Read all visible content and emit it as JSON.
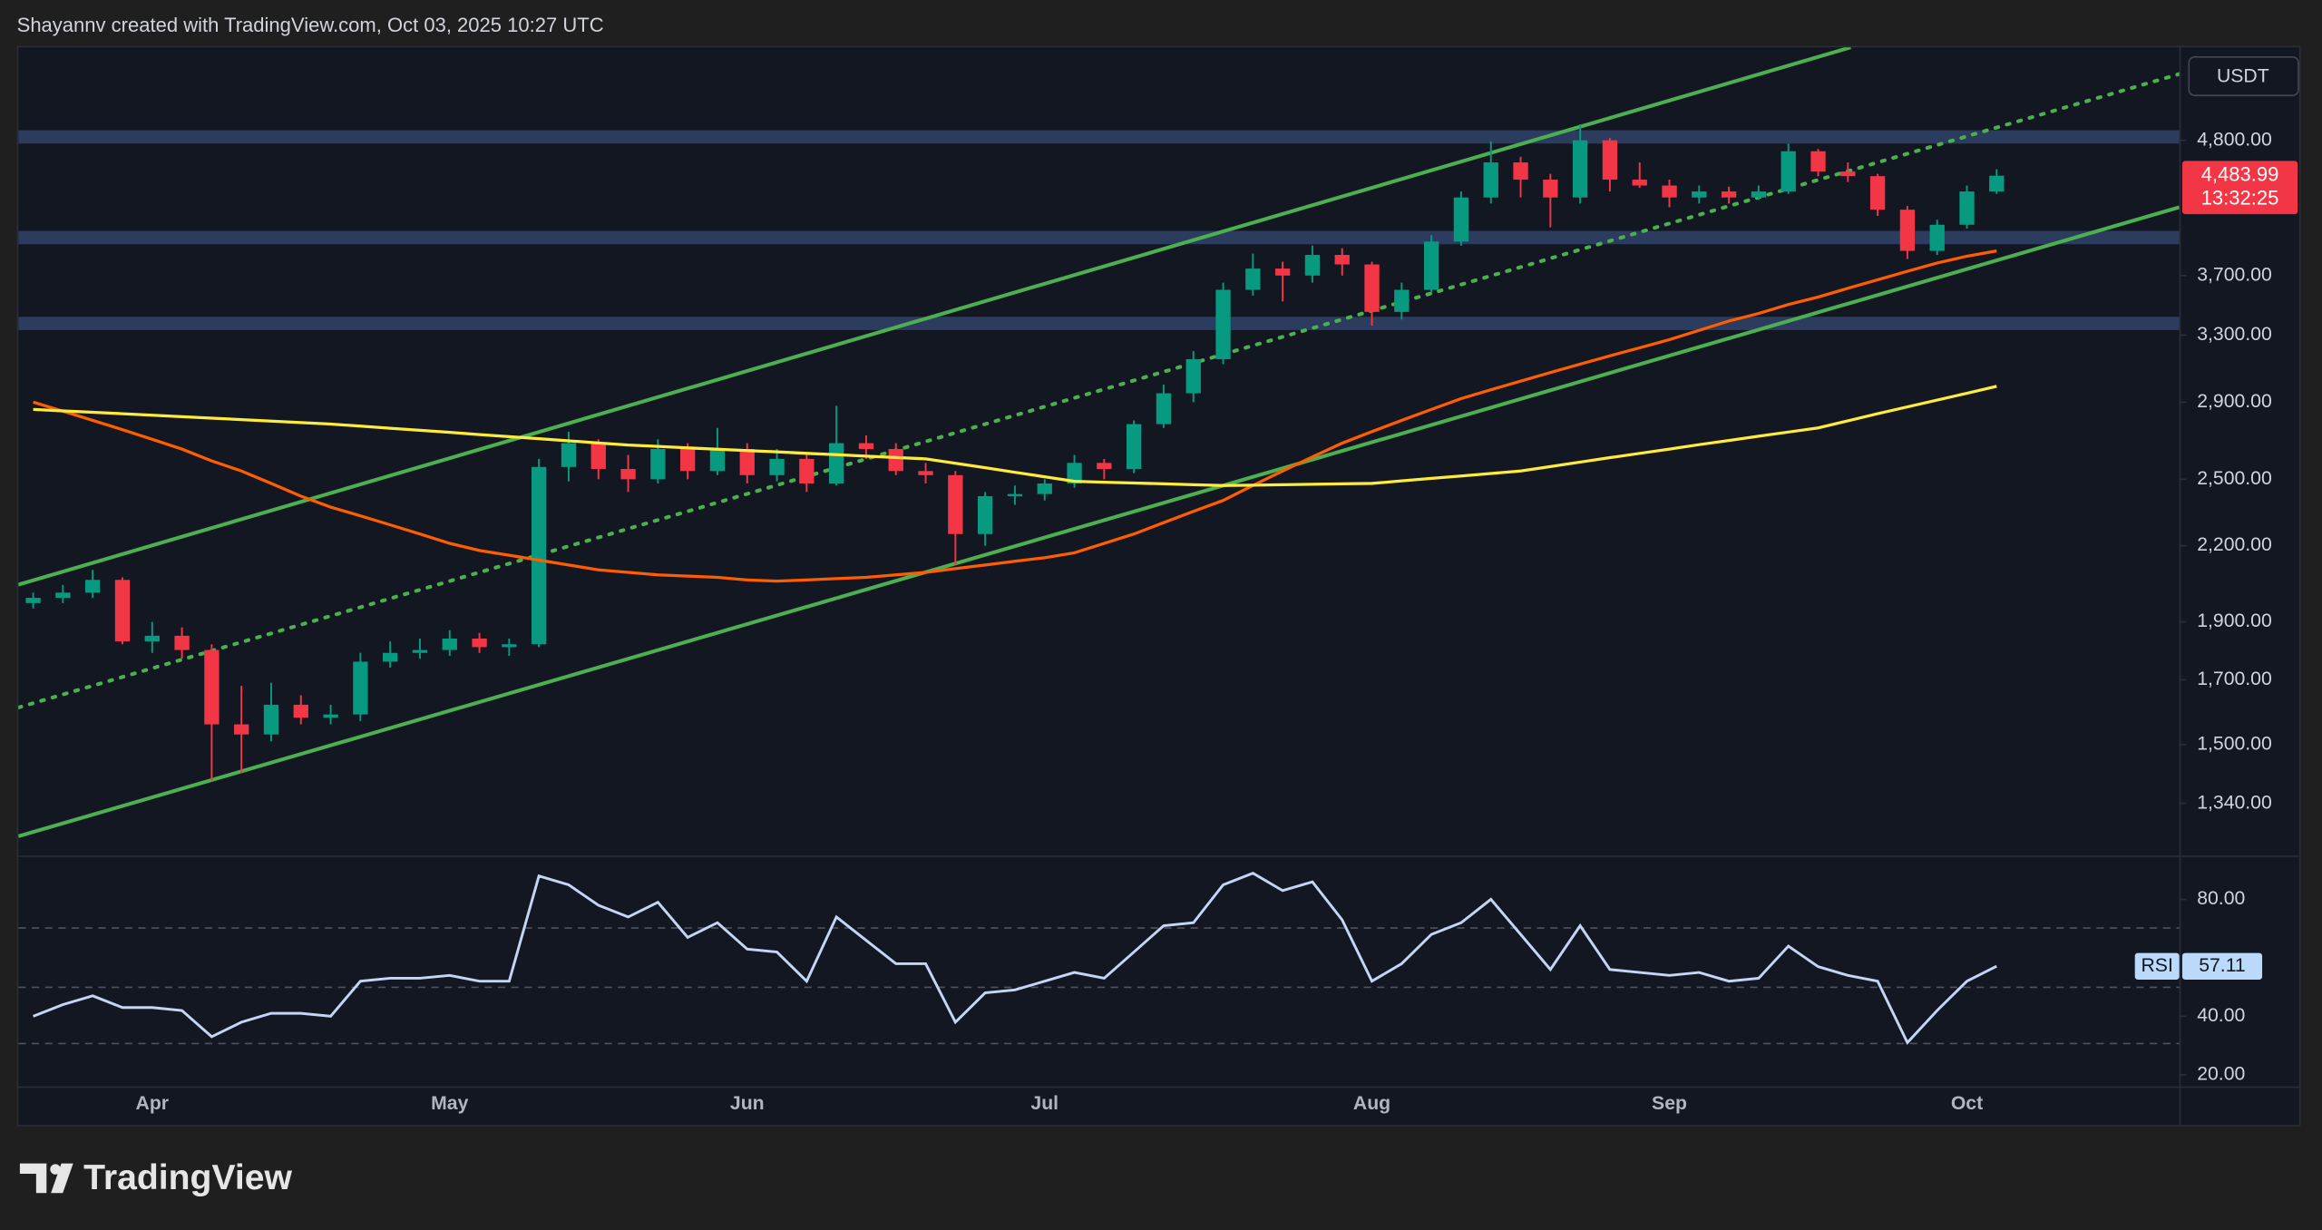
{
  "header": "Shayannv created with TradingView.com, Oct 03, 2025 10:27 UTC",
  "brand": "TradingView",
  "chart_data": [
    {
      "type": "candlestick",
      "currency": "USDT",
      "log_scale": true,
      "up_color": "#089981",
      "down_color": "#f23645",
      "categories": [
        null,
        null,
        null,
        null,
        "Apr",
        null,
        null,
        null,
        null,
        null,
        null,
        null,
        null,
        null,
        "May",
        null,
        null,
        null,
        null,
        null,
        null,
        null,
        null,
        null,
        "Jun",
        null,
        null,
        null,
        null,
        null,
        null,
        null,
        null,
        null,
        "Jul",
        null,
        null,
        null,
        null,
        null,
        null,
        null,
        null,
        null,
        null,
        "Aug",
        null,
        null,
        null,
        null,
        null,
        null,
        null,
        null,
        null,
        "Sep",
        null,
        null,
        null,
        null,
        null,
        null,
        null,
        null,
        null,
        "Oct",
        null
      ],
      "open": [
        1970,
        1990,
        2010,
        2060,
        1830,
        1850,
        1800,
        1560,
        1530,
        1620,
        1580,
        1590,
        1760,
        1790,
        1800,
        1840,
        1810,
        1820,
        2560,
        2680,
        2550,
        2500,
        2650,
        2540,
        2650,
        2520,
        2600,
        2480,
        2680,
        2650,
        2540,
        2520,
        2250,
        2420,
        2430,
        2480,
        2580,
        2550,
        2780,
        2950,
        3150,
        3600,
        3750,
        3700,
        3850,
        3780,
        3450,
        3600,
        3950,
        4300,
        4600,
        4450,
        4300,
        4800,
        4450,
        4400,
        4300,
        4350,
        4300,
        4350,
        4700,
        4520,
        4480,
        4200,
        3880,
        4080,
        4350
      ],
      "high": [
        2010,
        2040,
        2100,
        2070,
        1900,
        1880,
        1820,
        1680,
        1690,
        1650,
        1620,
        1790,
        1830,
        1840,
        1870,
        1860,
        1840,
        2600,
        2740,
        2700,
        2620,
        2700,
        2680,
        2760,
        2680,
        2650,
        2620,
        2880,
        2720,
        2680,
        2580,
        2540,
        2440,
        2470,
        2500,
        2620,
        2600,
        2800,
        3000,
        3200,
        3650,
        3860,
        3800,
        3920,
        3900,
        3800,
        3650,
        4000,
        4350,
        4790,
        4650,
        4500,
        4950,
        4820,
        4600,
        4450,
        4400,
        4390,
        4400,
        4770,
        4720,
        4600,
        4500,
        4230,
        4120,
        4400,
        4540
      ],
      "low": [
        1950,
        1970,
        1990,
        1820,
        1790,
        1770,
        1400,
        1420,
        1510,
        1560,
        1560,
        1570,
        1740,
        1770,
        1780,
        1790,
        1780,
        1810,
        2490,
        2500,
        2440,
        2480,
        2500,
        2520,
        2480,
        2490,
        2440,
        2470,
        2600,
        2520,
        2480,
        2120,
        2200,
        2380,
        2400,
        2460,
        2500,
        2530,
        2760,
        2900,
        3120,
        3560,
        3520,
        3650,
        3700,
        3360,
        3400,
        3580,
        3920,
        4250,
        4300,
        4060,
        4250,
        4350,
        4380,
        4220,
        4250,
        4250,
        4280,
        4330,
        4480,
        4430,
        4150,
        3820,
        3850,
        4050,
        4330
      ],
      "close": [
        1990,
        2010,
        2060,
        1830,
        1850,
        1800,
        1560,
        1530,
        1620,
        1580,
        1590,
        1760,
        1790,
        1800,
        1840,
        1810,
        1820,
        2560,
        2680,
        2550,
        2500,
        2650,
        2540,
        2650,
        2520,
        2600,
        2480,
        2680,
        2650,
        2540,
        2520,
        2250,
        2420,
        2430,
        2480,
        2580,
        2550,
        2780,
        2950,
        3150,
        3600,
        3750,
        3700,
        3850,
        3780,
        3450,
        3600,
        3950,
        4300,
        4600,
        4450,
        4300,
        4800,
        4450,
        4400,
        4300,
        4350,
        4300,
        4350,
        4700,
        4520,
        4480,
        4200,
        3880,
        4080,
        4350,
        4483.99
      ],
      "lines": [
        {
          "color": "#ff5d00",
          "values": [
            2900,
            2850,
            2800,
            2750,
            2700,
            2650,
            2590,
            2540,
            2480,
            2420,
            2370,
            2330,
            2290,
            2250,
            2210,
            2180,
            2160,
            2140,
            2120,
            2100,
            2090,
            2080,
            2075,
            2070,
            2060,
            2055,
            2060,
            2065,
            2070,
            2080,
            2090,
            2105,
            2120,
            2135,
            2150,
            2170,
            2210,
            2250,
            2300,
            2350,
            2400,
            2470,
            2540,
            2610,
            2680,
            2740,
            2800,
            2860,
            2920,
            2970,
            3020,
            3070,
            3120,
            3170,
            3220,
            3270,
            3330,
            3390,
            3440,
            3500,
            3550,
            3610,
            3670,
            3730,
            3790,
            3840,
            3880
          ]
        },
        {
          "color": "#ffeb3b",
          "values": [
            2860,
            2852,
            2844,
            2836,
            2828,
            2820,
            2812,
            2804,
            2796,
            2788,
            2780,
            2769,
            2758,
            2747,
            2736,
            2725,
            2714,
            2703,
            2692,
            2681,
            2670,
            2663,
            2656,
            2649,
            2642,
            2635,
            2628,
            2621,
            2614,
            2607,
            2600,
            2578,
            2556,
            2534,
            2512,
            2490,
            2486,
            2482,
            2478,
            2474,
            2470,
            2472,
            2474,
            2476,
            2478,
            2480,
            2492,
            2504,
            2516,
            2528,
            2540,
            2562,
            2584,
            2606,
            2628,
            2650,
            2672,
            2694,
            2716,
            2738,
            2760,
            2798,
            2836,
            2874,
            2912,
            2950,
            2990
          ]
        }
      ],
      "last_price": {
        "value": 4483.99,
        "label": "4,483.99"
      },
      "countdown": "13:32:25",
      "ylim": [
        1212,
        5740
      ],
      "yticks": [
        {
          "value": 4800,
          "label": "4,800.00"
        },
        {
          "value": 3700,
          "label": "3,700.00"
        },
        {
          "value": 3300,
          "label": "3,300.00"
        },
        {
          "value": 2900,
          "label": "2,900.00"
        },
        {
          "value": 2500,
          "label": "2,500.00"
        },
        {
          "value": 2200,
          "label": "2,200.00"
        },
        {
          "value": 1900,
          "label": "1,900.00"
        },
        {
          "value": 1700,
          "label": "1,700.00"
        },
        {
          "value": 1500,
          "label": "1,500.00"
        },
        {
          "value": 1340,
          "label": "1,340.00"
        }
      ]
    },
    {
      "type": "line",
      "series": [
        {
          "name": "RSI",
          "color": "#c5d5f5",
          "values": [
            40,
            44,
            47,
            43,
            43,
            42,
            33,
            38,
            41,
            41,
            40,
            52,
            53,
            53,
            54,
            52,
            52,
            88,
            85,
            78,
            74,
            79,
            67,
            72,
            63,
            62,
            52,
            74,
            66,
            58,
            58,
            38,
            48,
            49,
            52,
            55,
            53,
            62,
            71,
            72,
            85,
            89,
            83,
            86,
            73,
            52,
            58,
            68,
            72,
            80,
            68,
            56,
            71,
            56,
            55,
            54,
            55,
            52,
            53,
            64,
            57,
            54,
            52,
            31,
            42,
            52,
            57.11
          ]
        }
      ],
      "ylim": [
        16,
        94
      ],
      "yticks": [
        {
          "value": 80,
          "label": "80.00"
        },
        {
          "value": 40,
          "label": "40.00"
        },
        {
          "value": 20,
          "label": "20.00"
        }
      ]
    }
  ]
}
